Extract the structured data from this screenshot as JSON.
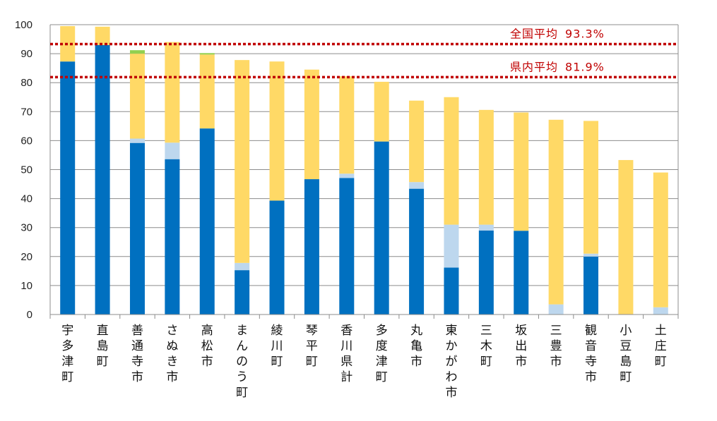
{
  "chart_data": {
    "type": "bar",
    "stacked": true,
    "categories": [
      "宇多津町",
      "直島町",
      "善通寺市",
      "さぬき市",
      "高松市",
      "まんのう町",
      "綾川町",
      "琴平町",
      "香川県計",
      "多度津町",
      "丸亀市",
      "東かがわ市",
      "三木町",
      "坂出市",
      "三豊市",
      "観音寺市",
      "小豆島町",
      "土庄町"
    ],
    "series": [
      {
        "color": "#0070c0",
        "values": [
          87.3,
          93.0,
          59.2,
          53.6,
          64.2,
          15.3,
          39.3,
          46.7,
          47.1,
          59.7,
          43.4,
          16.2,
          29.0,
          28.9,
          0,
          20.0,
          0,
          0
        ]
      },
      {
        "color": "#bdd7ee",
        "values": [
          0,
          0,
          1.5,
          5.7,
          0,
          2.5,
          0,
          0,
          1.5,
          0,
          2.3,
          14.8,
          2.0,
          0,
          3.5,
          1.0,
          0,
          2.5
        ]
      },
      {
        "color": "#ffd966",
        "values": [
          12.2,
          6.3,
          29.3,
          34.7,
          25.5,
          70.0,
          48.0,
          37.8,
          33.6,
          20.6,
          28.1,
          44.0,
          39.6,
          40.8,
          63.7,
          45.8,
          53.3,
          46.5
        ]
      },
      {
        "color": "#92d050",
        "values": [
          0,
          0,
          1.2,
          0,
          0.5,
          0,
          0,
          0,
          0,
          0,
          0,
          0,
          0,
          0,
          0,
          0,
          0,
          0
        ]
      }
    ],
    "y_ticks": [
      "0",
      "10",
      "20",
      "30",
      "40",
      "50",
      "60",
      "70",
      "80",
      "90",
      "100"
    ],
    "ylim": [
      0,
      100
    ],
    "grid": true,
    "reference_lines": [
      {
        "label": "全国平均",
        "value_text": "93.3%",
        "value": 93.3,
        "color": "#c00000"
      },
      {
        "label": "県内平均",
        "value_text": "81.9%",
        "value": 81.9,
        "color": "#c00000"
      }
    ]
  }
}
